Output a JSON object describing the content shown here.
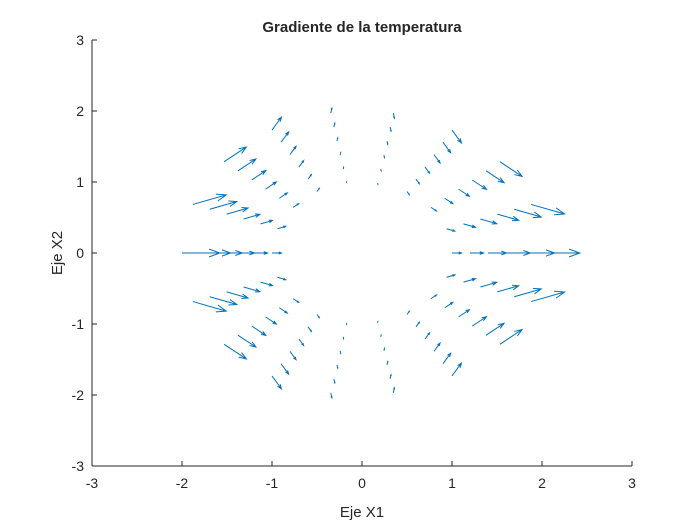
{
  "chart_data": {
    "type": "quiver",
    "title": "Gradiente de la temperatura",
    "xlabel": "Eje X1",
    "ylabel": "Eje X2",
    "xlim": [
      -3,
      3
    ],
    "ylim": [
      -3,
      3
    ],
    "xticks": [
      "-3",
      "-2",
      "-1",
      "0",
      "1",
      "2",
      "3"
    ],
    "yticks": [
      "-3",
      "-2",
      "-1",
      "0",
      "1",
      "2",
      "3"
    ],
    "grid": false,
    "box": false,
    "color": "#0072BD",
    "points": {
      "r": [
        1.0,
        1.2,
        1.4,
        1.6,
        1.8,
        2.0
      ],
      "theta_deg": [
        0,
        20,
        40,
        60,
        80,
        100,
        120,
        140,
        160,
        180,
        200,
        220,
        240,
        260,
        280,
        300,
        320,
        340
      ]
    },
    "u": [
      [
        1.0,
        0.88,
        0.59,
        0.25,
        0.03,
        0.03,
        0.25,
        0.59,
        0.88,
        1.0,
        0.88,
        0.59,
        0.25,
        0.03,
        0.03,
        0.25,
        0.59,
        0.88
      ],
      [
        1.44,
        1.27,
        0.85,
        0.36,
        0.04,
        0.04,
        0.36,
        0.85,
        1.27,
        1.44,
        1.27,
        0.85,
        0.36,
        0.04,
        0.04,
        0.36,
        0.85,
        1.27
      ],
      [
        1.96,
        1.73,
        1.15,
        0.49,
        0.06,
        0.06,
        0.49,
        1.15,
        1.73,
        1.96,
        1.73,
        1.15,
        0.49,
        0.06,
        0.06,
        0.49,
        1.15,
        1.73
      ],
      [
        2.56,
        2.26,
        1.5,
        0.64,
        0.08,
        0.08,
        0.64,
        1.5,
        2.26,
        2.56,
        2.26,
        1.5,
        0.64,
        0.08,
        0.08,
        0.64,
        1.5,
        2.26
      ],
      [
        3.24,
        2.86,
        1.9,
        0.81,
        0.1,
        0.1,
        0.81,
        1.9,
        2.86,
        3.24,
        2.86,
        1.9,
        0.81,
        0.1,
        0.1,
        0.81,
        1.9,
        2.86
      ],
      [
        4.0,
        3.53,
        2.35,
        1.0,
        0.12,
        0.12,
        1.0,
        2.35,
        3.53,
        4.0,
        3.53,
        2.35,
        1.0,
        0.12,
        0.12,
        1.0,
        2.35,
        3.53
      ]
    ],
    "v": [
      [
        0,
        -0.32,
        -0.49,
        -0.43,
        -0.17,
        0.17,
        0.43,
        0.49,
        0.32,
        0,
        -0.32,
        -0.49,
        -0.43,
        -0.17,
        0.17,
        0.43,
        0.49,
        0.32
      ],
      [
        0,
        -0.46,
        -0.71,
        -0.62,
        -0.25,
        0.25,
        0.62,
        0.71,
        0.46,
        0,
        -0.46,
        -0.71,
        -0.62,
        -0.25,
        0.25,
        0.62,
        0.71,
        0.46
      ],
      [
        0,
        -0.63,
        -0.96,
        -0.85,
        -0.34,
        0.34,
        0.85,
        0.96,
        0.63,
        0,
        -0.63,
        -0.96,
        -0.85,
        -0.34,
        0.34,
        0.85,
        0.96,
        0.63
      ],
      [
        0,
        -0.82,
        -1.26,
        -1.11,
        -0.44,
        0.44,
        1.11,
        1.26,
        0.82,
        0,
        -0.82,
        -1.26,
        -1.11,
        -0.44,
        0.44,
        1.11,
        1.26,
        0.82
      ],
      [
        0,
        -1.04,
        -1.59,
        -1.4,
        -0.55,
        0.55,
        1.4,
        1.59,
        1.04,
        0,
        -1.04,
        -1.59,
        -1.4,
        -0.55,
        0.55,
        1.4,
        1.59,
        1.04
      ],
      [
        0,
        -1.28,
        -1.97,
        -1.73,
        -0.68,
        0.68,
        1.73,
        1.97,
        1.28,
        0,
        -1.28,
        -1.97,
        -1.73,
        -0.68,
        0.68,
        1.73,
        1.97,
        1.28
      ]
    ]
  }
}
